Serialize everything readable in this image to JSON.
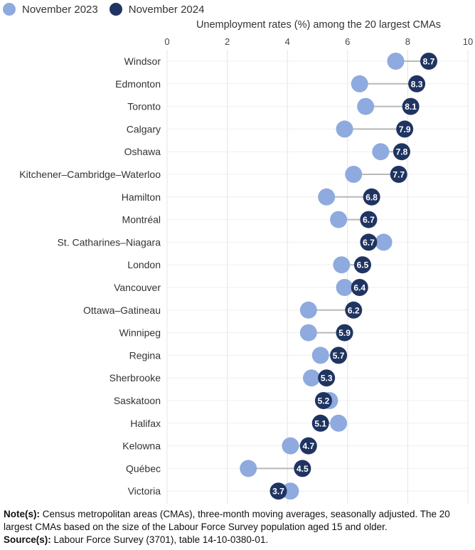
{
  "legend": {
    "items": [
      {
        "label": "November 2023",
        "color": "#8faade"
      },
      {
        "label": "November 2024",
        "color": "#1f3461"
      }
    ]
  },
  "chart_data": {
    "type": "dumbbell",
    "title": "",
    "xlabel": "Unemployment rates (%) among the 20 largest CMAs",
    "ylabel": "",
    "xlim": [
      0,
      10
    ],
    "xticks": [
      0,
      2,
      4,
      6,
      8,
      10
    ],
    "xaxis_position": "top",
    "grid": true,
    "legend_placement": "top-left",
    "categories": [
      "Windsor",
      "Edmonton",
      "Toronto",
      "Calgary",
      "Oshawa",
      "Kitchener–Cambridge–Waterloo",
      "Hamilton",
      "Montréal",
      "St. Catharines–Niagara",
      "London",
      "Vancouver",
      "Ottawa–Gatineau",
      "Winnipeg",
      "Regina",
      "Sherbrooke",
      "Saskatoon",
      "Halifax",
      "Kelowna",
      "Québec",
      "Victoria"
    ],
    "series": [
      {
        "name": "November 2023",
        "color": "#8faade",
        "labeled": false,
        "values": [
          7.6,
          6.4,
          6.6,
          5.9,
          7.1,
          6.2,
          5.3,
          5.7,
          7.2,
          5.8,
          5.9,
          4.7,
          4.7,
          5.1,
          4.8,
          5.4,
          5.7,
          4.1,
          2.7,
          4.1
        ]
      },
      {
        "name": "November 2024",
        "color": "#1f3461",
        "labeled": true,
        "values": [
          8.7,
          8.3,
          8.1,
          7.9,
          7.8,
          7.7,
          6.8,
          6.7,
          6.7,
          6.5,
          6.4,
          6.2,
          5.9,
          5.7,
          5.3,
          5.2,
          5.1,
          4.7,
          4.5,
          3.7
        ]
      }
    ],
    "connector_color": "#b8b8b8"
  },
  "notes": {
    "note_label": "Note(s):",
    "note_text": " Census metropolitan areas (CMAs), three-month moving averages, seasonally adjusted. The 20 largest CMAs based on the size of the Labour Force Survey population aged 15 and older.",
    "source_label": "Source(s):",
    "source_text": " Labour Force Survey (3701), table 14-10-0380-01."
  }
}
